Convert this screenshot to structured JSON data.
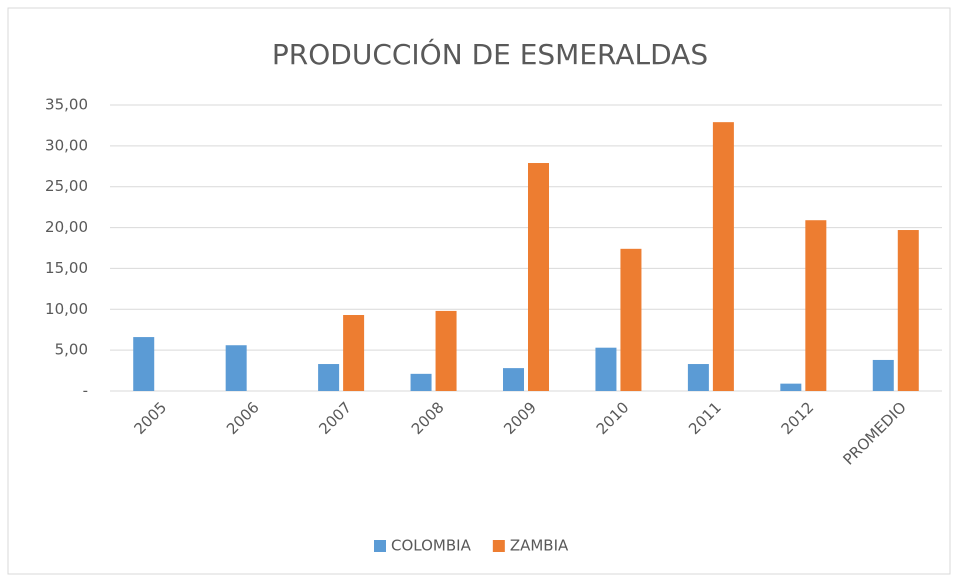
{
  "chart_data": {
    "type": "bar",
    "title": "PRODUCCIÓN DE ESMERALDAS",
    "categories": [
      "2005",
      "2006",
      "2007",
      "2008",
      "2009",
      "2010",
      "2011",
      "2012",
      "PROMEDIO"
    ],
    "series": [
      {
        "name": "COLOMBIA",
        "color": "#5b9bd5",
        "values": [
          6.6,
          5.6,
          3.3,
          2.1,
          2.8,
          5.3,
          3.3,
          0.9,
          3.8
        ]
      },
      {
        "name": "ZAMBIA",
        "color": "#ed7d31",
        "values": [
          null,
          null,
          9.3,
          9.8,
          27.9,
          17.4,
          32.9,
          20.9,
          19.7
        ]
      }
    ],
    "ylim": [
      0,
      35
    ],
    "yticks": [
      {
        "value": 0,
        "label": "-"
      },
      {
        "value": 5,
        "label": "5,00"
      },
      {
        "value": 10,
        "label": "10,00"
      },
      {
        "value": 15,
        "label": "15,00"
      },
      {
        "value": 20,
        "label": "20,00"
      },
      {
        "value": 25,
        "label": "25,00"
      },
      {
        "value": 30,
        "label": "30,00"
      },
      {
        "value": 35,
        "label": "35,00"
      }
    ],
    "grid": true,
    "legend": "bottom"
  }
}
